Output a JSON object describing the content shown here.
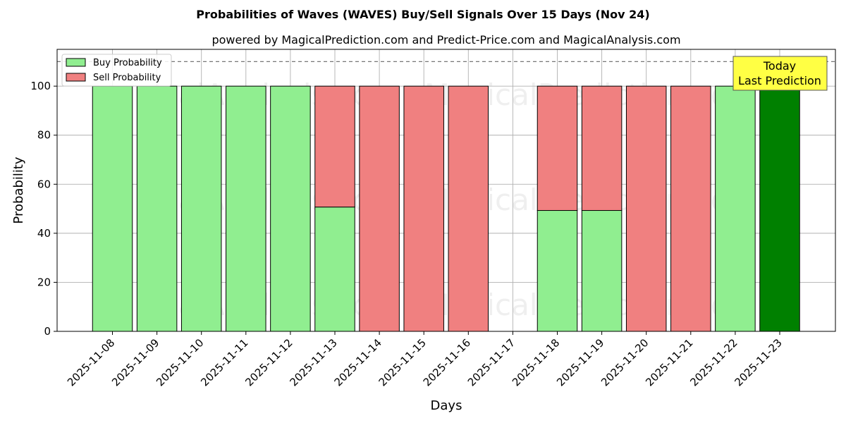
{
  "chart_data": {
    "type": "bar",
    "stacked": true,
    "title": "Probabilities of Waves (WAVES) Buy/Sell Signals Over 15 Days (Nov 24)",
    "subtitle": "powered by MagicalPrediction.com and Predict-Price.com and MagicalAnalysis.com",
    "xlabel": "Days",
    "ylabel": "Probability",
    "ylim": [
      0,
      115
    ],
    "yticks": [
      0,
      20,
      40,
      60,
      80,
      100
    ],
    "grid": true,
    "reference_line": 110,
    "legend_position": "top-left",
    "categories": [
      "2025-11-08",
      "2025-11-09",
      "2025-11-10",
      "2025-11-11",
      "2025-11-12",
      "2025-11-13",
      "2025-11-14",
      "2025-11-15",
      "2025-11-16",
      "2025-11-17",
      "2025-11-18",
      "2025-11-19",
      "2025-11-20",
      "2025-11-21",
      "2025-11-22",
      "2025-11-23"
    ],
    "series": [
      {
        "name": "Buy Probability",
        "color": "#90ee90",
        "values": [
          100,
          100,
          100,
          100,
          100,
          50.7,
          0,
          0,
          0,
          null,
          49.3,
          49.3,
          0,
          0,
          100,
          100
        ]
      },
      {
        "name": "Sell Probability",
        "color": "#f08080",
        "values": [
          0,
          0,
          0,
          0,
          0,
          49.3,
          100,
          100,
          100,
          null,
          50.7,
          50.7,
          100,
          100,
          0,
          0
        ]
      }
    ],
    "highlight": {
      "category": "2025-11-23",
      "color": "#008000"
    },
    "annotation": {
      "lines": [
        "Today",
        "Last Prediction"
      ],
      "background": "#ffff44"
    },
    "watermarks": [
      "MagicalAnalysis.com",
      "MagicalPrediction.com"
    ]
  }
}
